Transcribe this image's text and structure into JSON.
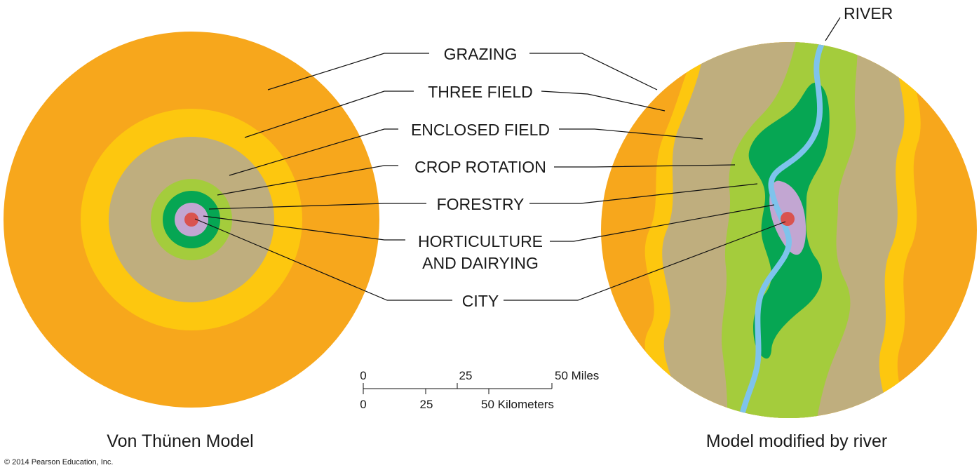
{
  "colors": {
    "grazing": "#f7a71c",
    "three_field": "#fdc70f",
    "enclosed_field": "#bfae7e",
    "crop_rotation": "#a4cc3c",
    "forestry": "#06a653",
    "horticulture_dairying": "#c2a6d2",
    "city": "#d9534f",
    "river": "#7ec3ec"
  },
  "labels": {
    "river": "RIVER",
    "grazing": "GRAZING",
    "three_field": "THREE FIELD",
    "enclosed_field": "ENCLOSED FIELD",
    "crop_rotation": "CROP ROTATION",
    "forestry": "FORESTRY",
    "horticulture_line1": "HORTICULTURE",
    "horticulture_line2": "AND DAIRYING",
    "city": "CITY"
  },
  "scale": {
    "miles": {
      "ticks": [
        "0",
        "25",
        "50 Miles"
      ]
    },
    "kilometers": {
      "ticks": [
        "0",
        "25",
        "50 Kilometers"
      ]
    }
  },
  "captions": {
    "left": "Von Thünen Model",
    "right": "Model modified by river"
  },
  "copyright": "© 2014 Pearson Education, Inc."
}
